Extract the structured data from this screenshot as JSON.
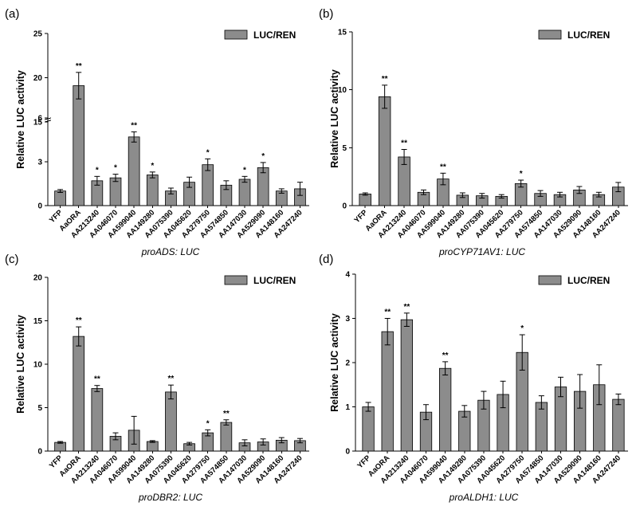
{
  "colors": {
    "bar": "#8c8c8c",
    "axis": "#000000"
  },
  "chart_data": [
    {
      "panel_label": "(a)",
      "type": "bar",
      "categories": [
        "YFP",
        "AaORA",
        "AA213240",
        "AA046070",
        "AA599040",
        "AA149280",
        "AA075390",
        "AA045620",
        "AA279750",
        "AA574850",
        "AA147030",
        "AA529090",
        "AA148160",
        "AA247240"
      ],
      "series": [
        {
          "name": "LUC/REN",
          "values": [
            1.0,
            19.1,
            1.7,
            1.9,
            4.7,
            2.1,
            1.0,
            1.6,
            2.8,
            1.4,
            1.8,
            2.6,
            1.0,
            1.15
          ],
          "errors": [
            0.1,
            1.5,
            0.3,
            0.25,
            0.35,
            0.2,
            0.2,
            0.35,
            0.4,
            0.3,
            0.2,
            0.35,
            0.15,
            0.45
          ]
        }
      ],
      "significance": [
        "",
        "**",
        "*",
        "*",
        "**",
        "*",
        "",
        "",
        "*",
        "",
        "*",
        "*",
        "",
        ""
      ],
      "xlabel": "proADS: LUC",
      "ylabel": "Relative LUC activity",
      "y_axis_broken": true,
      "ylim_lower": [
        0,
        6
      ],
      "ylim_upper": [
        6,
        25
      ],
      "yticks_lower": [
        "0",
        "3",
        "6"
      ],
      "yticks_upper": [
        "15",
        "20",
        "25"
      ],
      "legend_position": "top-right"
    },
    {
      "panel_label": "(b)",
      "type": "bar",
      "categories": [
        "YFP",
        "AaORA",
        "AA213240",
        "AA046070",
        "AA599040",
        "AA149280",
        "AA075390",
        "AA045620",
        "AA279750",
        "AA574850",
        "AA147030",
        "AA529090",
        "AA148160",
        "AA247240"
      ],
      "series": [
        {
          "name": "LUC/REN",
          "values": [
            1.0,
            9.4,
            4.2,
            1.15,
            2.3,
            0.9,
            0.85,
            0.8,
            1.9,
            1.05,
            0.95,
            1.35,
            0.95,
            1.6
          ],
          "errors": [
            0.1,
            1.0,
            0.65,
            0.2,
            0.5,
            0.2,
            0.2,
            0.15,
            0.3,
            0.25,
            0.2,
            0.3,
            0.2,
            0.4
          ]
        }
      ],
      "significance": [
        "",
        "**",
        "**",
        "",
        "**",
        "",
        "",
        "",
        "*",
        "",
        "",
        "",
        "",
        ""
      ],
      "xlabel": "proCYP71AV1: LUC",
      "ylabel": "Relative LUC activity",
      "ylim": [
        0,
        15
      ],
      "yticks": [
        "0",
        "5",
        "10",
        "15"
      ],
      "legend_position": "top-right"
    },
    {
      "panel_label": "(c)",
      "type": "bar",
      "categories": [
        "YFP",
        "AaORA",
        "AA213240",
        "AA046070",
        "AA599040",
        "AA149280",
        "AA075390",
        "AA045620",
        "AA279750",
        "AA574850",
        "AA147030",
        "AA529090",
        "AA148160",
        "AA247240"
      ],
      "series": [
        {
          "name": "LUC/REN",
          "values": [
            1.0,
            13.2,
            7.2,
            1.7,
            2.4,
            1.1,
            6.8,
            0.85,
            2.1,
            3.3,
            0.95,
            1.05,
            1.25,
            1.2
          ],
          "errors": [
            0.1,
            1.1,
            0.35,
            0.4,
            1.6,
            0.1,
            0.8,
            0.15,
            0.35,
            0.3,
            0.35,
            0.35,
            0.3,
            0.25
          ]
        }
      ],
      "significance": [
        "",
        "**",
        "**",
        "",
        "",
        "",
        "**",
        "",
        "*",
        "**",
        "",
        "",
        "",
        ""
      ],
      "xlabel": "proDBR2: LUC",
      "ylabel": "Relative LUC activity",
      "ylim": [
        0,
        20
      ],
      "yticks": [
        "0",
        "5",
        "10",
        "15",
        "20"
      ],
      "legend_position": "top-right"
    },
    {
      "panel_label": "(d)",
      "type": "bar",
      "categories": [
        "YFP",
        "AaORA",
        "AA213240",
        "AA046070",
        "AA599040",
        "AA149280",
        "AA075390",
        "AA045620",
        "AA279750",
        "AA574850",
        "AA147030",
        "AA529090",
        "AA148160",
        "AA247240"
      ],
      "series": [
        {
          "name": "LUC/REN",
          "values": [
            1.0,
            2.7,
            2.97,
            0.88,
            1.87,
            0.9,
            1.15,
            1.28,
            2.23,
            1.1,
            1.45,
            1.35,
            1.5,
            1.17
          ],
          "errors": [
            0.1,
            0.3,
            0.15,
            0.17,
            0.15,
            0.13,
            0.2,
            0.3,
            0.4,
            0.15,
            0.22,
            0.38,
            0.45,
            0.12
          ]
        }
      ],
      "significance": [
        "",
        "**",
        "**",
        "",
        "**",
        "",
        "",
        "",
        "*",
        "",
        "",
        "",
        "",
        ""
      ],
      "xlabel": "proALDH1: LUC",
      "ylabel": "Relative LUC activity",
      "ylim": [
        0,
        4
      ],
      "yticks": [
        "0",
        "1",
        "2",
        "3",
        "4"
      ],
      "legend_position": "top-right"
    }
  ]
}
